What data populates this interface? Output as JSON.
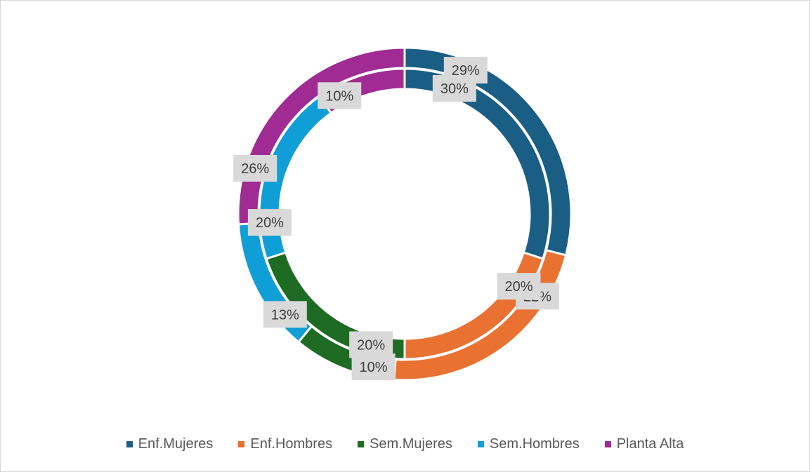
{
  "chart_data": {
    "type": "doughnut",
    "categories": [
      "Enf.Mujeres",
      "Enf.Hombres",
      "Sem.Mujeres",
      "Sem.Hombres",
      "Planta Alta"
    ],
    "colors": [
      "#1b5e85",
      "#e97132",
      "#1e6b24",
      "#0f9ed5",
      "#a02b93"
    ],
    "series": [
      {
        "ring": "outer",
        "values": [
          29,
          22,
          10,
          13,
          26
        ],
        "labels": [
          "29%",
          "22%",
          "10%",
          "13%",
          "26%"
        ]
      },
      {
        "ring": "inner",
        "values": [
          30,
          20,
          20,
          20,
          10
        ],
        "labels": [
          "30%",
          "20%",
          "20%",
          "20%",
          "10%"
        ]
      }
    ],
    "legend": {
      "position": "bottom",
      "items": [
        "Enf.Mujeres",
        "Enf.Hombres",
        "Sem.Mujeres",
        "Sem.Hombres",
        "Planta Alta"
      ]
    },
    "data_label_background": "#d9d9d9"
  }
}
